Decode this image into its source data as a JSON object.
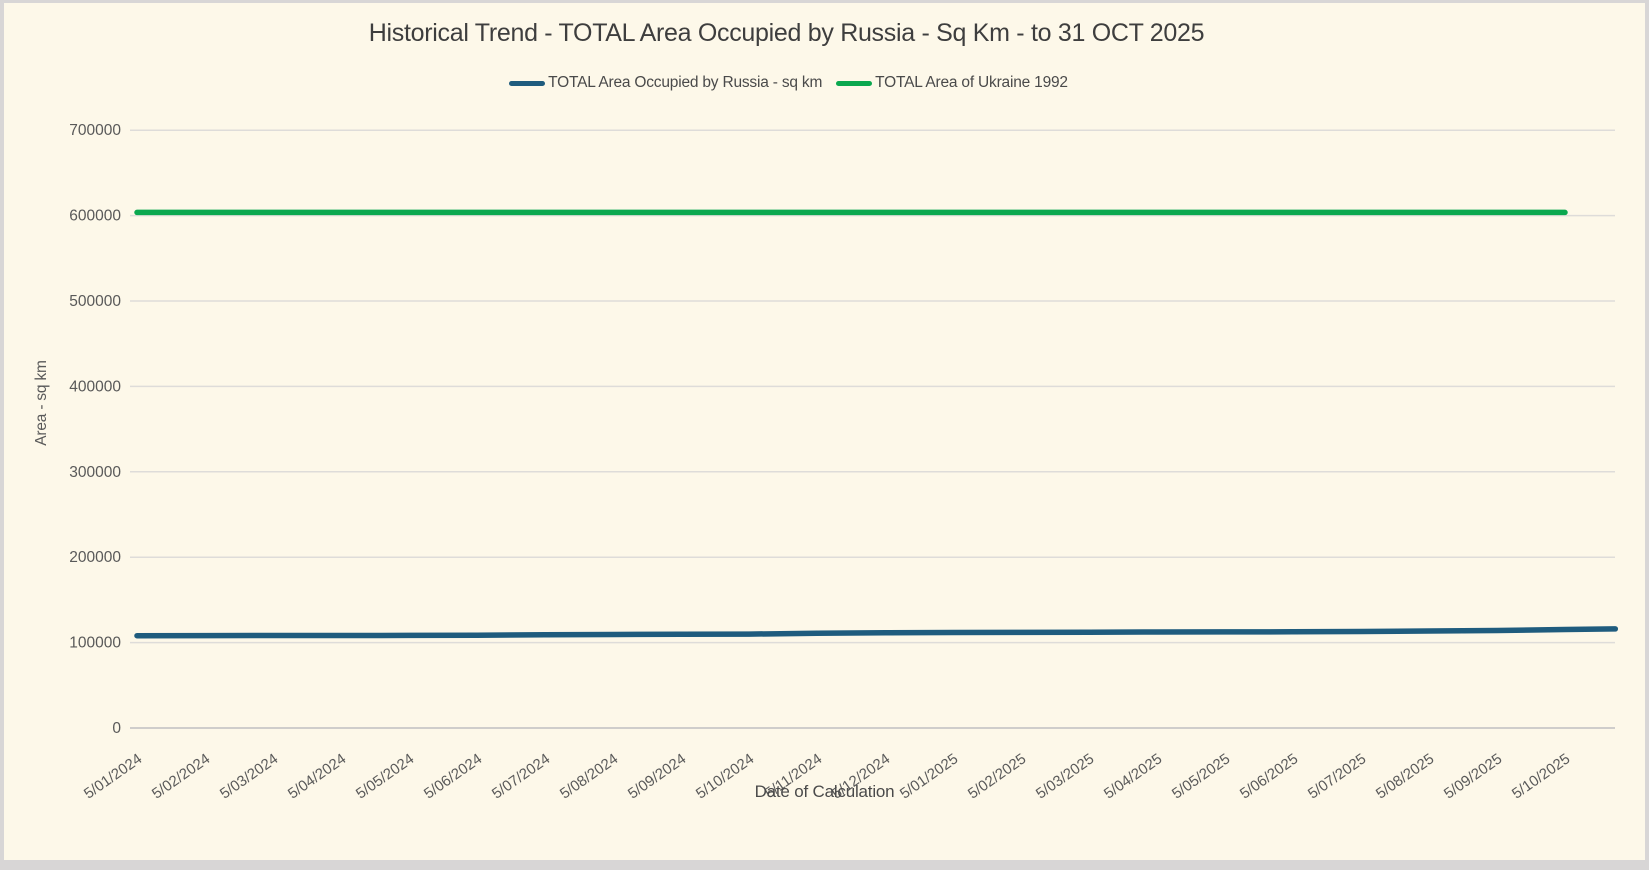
{
  "frame": {
    "background": "#FDF8E9",
    "border_color": "#D8D6D6"
  },
  "chart_data": {
    "type": "line",
    "title": "Historical Trend - TOTAL Area Occupied by Russia - Sq Km - to 31 OCT 2025",
    "xlabel": "Date of Calculation",
    "ylabel": "Area - sq km",
    "ylim": [
      0,
      700000
    ],
    "ytick_interval": 100000,
    "ytick_labels": [
      "0",
      "100000",
      "200000",
      "300000",
      "400000",
      "500000",
      "600000",
      "700000"
    ],
    "grid": true,
    "legend_position": "top",
    "x_axis_note": "axis extends past last monthly label to 31 OCT 2025",
    "categories": [
      "5/01/2024",
      "5/02/2024",
      "5/03/2024",
      "5/04/2024",
      "5/05/2024",
      "5/06/2024",
      "5/07/2024",
      "5/08/2024",
      "5/09/2024",
      "5/10/2024",
      "5/11/2024",
      "5/12/2024",
      "5/01/2025",
      "5/02/2025",
      "5/03/2025",
      "5/04/2025",
      "5/05/2025",
      "5/06/2025",
      "5/07/2025",
      "5/08/2025",
      "5/09/2025",
      "5/10/2025"
    ],
    "series": [
      {
        "name": "TOTAL Area Occupied by Russia - sq km",
        "key": "russia-occupied-area",
        "color": "#1F5C7E",
        "points": [
          [
            0,
            108100
          ],
          [
            1,
            108200
          ],
          [
            2,
            108300
          ],
          [
            3,
            108350
          ],
          [
            4,
            108450
          ],
          [
            5,
            108600
          ],
          [
            6,
            109300
          ],
          [
            7,
            109500
          ],
          [
            8,
            109700
          ],
          [
            9,
            110000
          ],
          [
            10,
            110900
          ],
          [
            11,
            111500
          ],
          [
            12,
            111800
          ],
          [
            13,
            112000
          ],
          [
            14,
            112200
          ],
          [
            15,
            112400
          ],
          [
            16,
            112500
          ],
          [
            17,
            112700
          ],
          [
            18,
            113000
          ],
          [
            19,
            113600
          ],
          [
            20,
            114200
          ],
          [
            21,
            115300
          ],
          [
            21.74,
            116000
          ]
        ]
      },
      {
        "name": "TOTAL Area of Ukraine 1992",
        "key": "ukraine-total-area-1992",
        "color": "#0BA84F",
        "points": [
          [
            0,
            603700
          ],
          [
            1,
            603700
          ],
          [
            2,
            603700
          ],
          [
            3,
            603700
          ],
          [
            4,
            603700
          ],
          [
            5,
            603700
          ],
          [
            6,
            603700
          ],
          [
            7,
            603700
          ],
          [
            8,
            603700
          ],
          [
            9,
            603700
          ],
          [
            10,
            603700
          ],
          [
            11,
            603700
          ],
          [
            12,
            603700
          ],
          [
            13,
            603700
          ],
          [
            14,
            603700
          ],
          [
            15,
            603700
          ],
          [
            16,
            603700
          ],
          [
            17,
            603700
          ],
          [
            18,
            603700
          ],
          [
            19,
            603700
          ],
          [
            20,
            603700
          ],
          [
            21,
            603700
          ]
        ]
      }
    ],
    "style": {
      "gridline_color": "#DEDCD9",
      "zero_axis_color": "#CFCDCB",
      "tick_label_color": "#595959",
      "x_tick_rotation_deg": -35,
      "line_width": 5.5
    }
  }
}
